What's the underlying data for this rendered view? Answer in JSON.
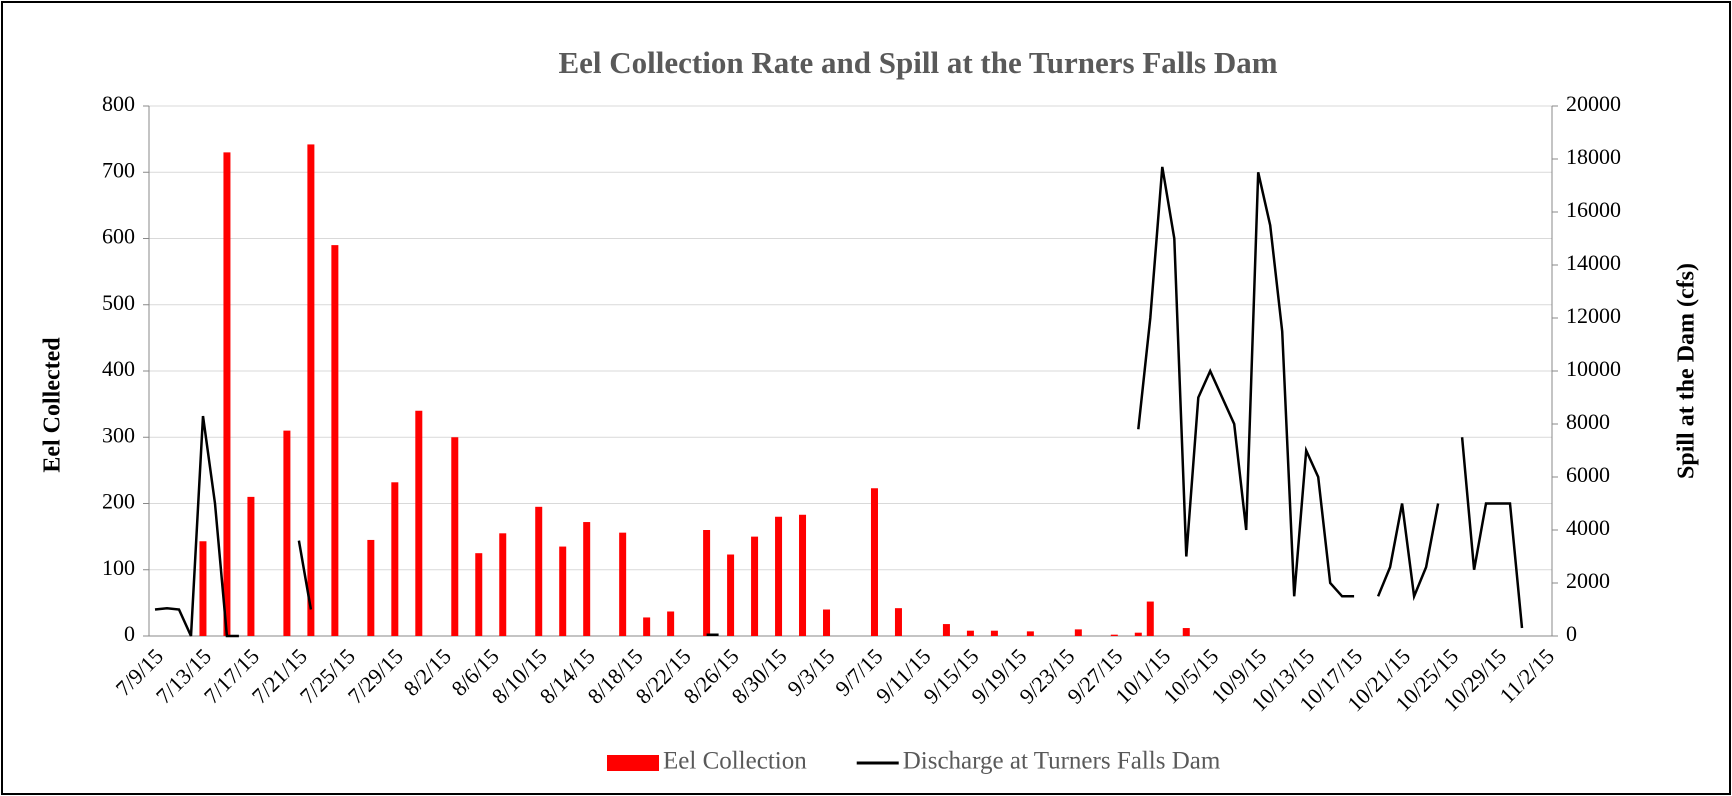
{
  "chart_data": {
    "type": "bar",
    "title": "Eel Collection Rate and Spill at the Turners Falls Dam",
    "y_label": "Eel Collected",
    "y2_label": "Spill at  the Dam (cfs)",
    "categories": [
      "7/9/15",
      null,
      null,
      null,
      "7/13/15",
      null,
      null,
      null,
      "7/17/15",
      null,
      null,
      null,
      "7/21/15",
      null,
      null,
      null,
      "7/25/15",
      null,
      null,
      null,
      "7/29/15",
      null,
      null,
      null,
      "8/2/15",
      null,
      null,
      null,
      "8/6/15",
      null,
      null,
      null,
      "8/10/15",
      null,
      null,
      null,
      "8/14/15",
      null,
      null,
      null,
      "8/18/15",
      null,
      null,
      null,
      "8/22/15",
      null,
      null,
      null,
      "8/26/15",
      null,
      null,
      null,
      "8/30/15",
      null,
      null,
      null,
      "9/3/15",
      null,
      null,
      null,
      "9/7/15",
      null,
      null,
      null,
      "9/11/15",
      null,
      null,
      null,
      "9/15/15",
      null,
      null,
      null,
      "9/19/15",
      null,
      null,
      null,
      "9/23/15",
      null,
      null,
      null,
      "9/27/15",
      null,
      null,
      null,
      "10/1/15",
      null,
      null,
      null,
      "10/5/15",
      null,
      null,
      null,
      "10/9/15",
      null,
      null,
      null,
      "10/13/15",
      null,
      null,
      null,
      "10/17/15",
      null,
      null,
      null,
      "10/21/15",
      null,
      null,
      null,
      "10/25/15",
      null,
      null,
      null,
      "10/29/15",
      null,
      null,
      null,
      "11/2/15"
    ],
    "series": [
      {
        "name": "Eel Collection",
        "type": "bar",
        "color": "#ff0000",
        "values": [
          null,
          null,
          null,
          null,
          143,
          null,
          730,
          null,
          210,
          null,
          null,
          310,
          null,
          742,
          null,
          590,
          null,
          null,
          145,
          null,
          232,
          null,
          340,
          null,
          null,
          300,
          null,
          125,
          null,
          155,
          null,
          null,
          195,
          null,
          135,
          null,
          172,
          null,
          null,
          156,
          null,
          28,
          null,
          37,
          null,
          null,
          160,
          null,
          123,
          null,
          150,
          null,
          180,
          null,
          183,
          null,
          40,
          null,
          null,
          null,
          223,
          null,
          42,
          null,
          null,
          null,
          18,
          null,
          8,
          null,
          8,
          null,
          null,
          7,
          null,
          null,
          null,
          10,
          null,
          null,
          2,
          null,
          5,
          52,
          null,
          null,
          12,
          null,
          null,
          null,
          null,
          null,
          null,
          null,
          null,
          null,
          null,
          null,
          null,
          null,
          null,
          null,
          null,
          null,
          null,
          null,
          null,
          null,
          null,
          null,
          null,
          null,
          null,
          null,
          null,
          null,
          null
        ]
      },
      {
        "name": "Discharge at Turners Falls Dam",
        "type": "line",
        "axis": "y2",
        "color": "#000000",
        "values": [
          1000,
          1050,
          1000,
          0,
          8300,
          5000,
          0,
          0,
          null,
          null,
          null,
          null,
          3600,
          1000,
          null,
          null,
          null,
          null,
          null,
          null,
          null,
          null,
          null,
          null,
          null,
          null,
          null,
          null,
          null,
          null,
          null,
          null,
          null,
          null,
          null,
          null,
          null,
          null,
          null,
          null,
          null,
          null,
          100,
          null,
          null,
          null,
          50,
          50,
          null,
          null,
          null,
          null,
          50,
          null,
          null,
          null,
          null,
          null,
          null,
          null,
          null,
          50,
          null,
          null,
          null,
          null,
          null,
          null,
          null,
          null,
          null,
          null,
          null,
          null,
          null,
          null,
          null,
          null,
          null,
          null,
          null,
          null,
          7800,
          12000,
          17700,
          15000,
          3000,
          9000,
          10000,
          9000,
          8000,
          4000,
          17500,
          15500,
          11500,
          1500,
          7000,
          6000,
          2000,
          1500,
          1500,
          null,
          1500,
          2600,
          5000,
          1500,
          2600,
          5000,
          null,
          7500,
          2500,
          5000,
          5000,
          5000,
          300,
          null,
          null
        ]
      }
    ],
    "ylim": [
      0,
      800
    ],
    "yticks": [
      0,
      100,
      200,
      300,
      400,
      500,
      600,
      700,
      800
    ],
    "y2lim": [
      0,
      20000
    ],
    "y2ticks": [
      0,
      2000,
      4000,
      6000,
      8000,
      10000,
      12000,
      14000,
      16000,
      18000,
      20000
    ],
    "grid": true,
    "legend": "bottom"
  }
}
